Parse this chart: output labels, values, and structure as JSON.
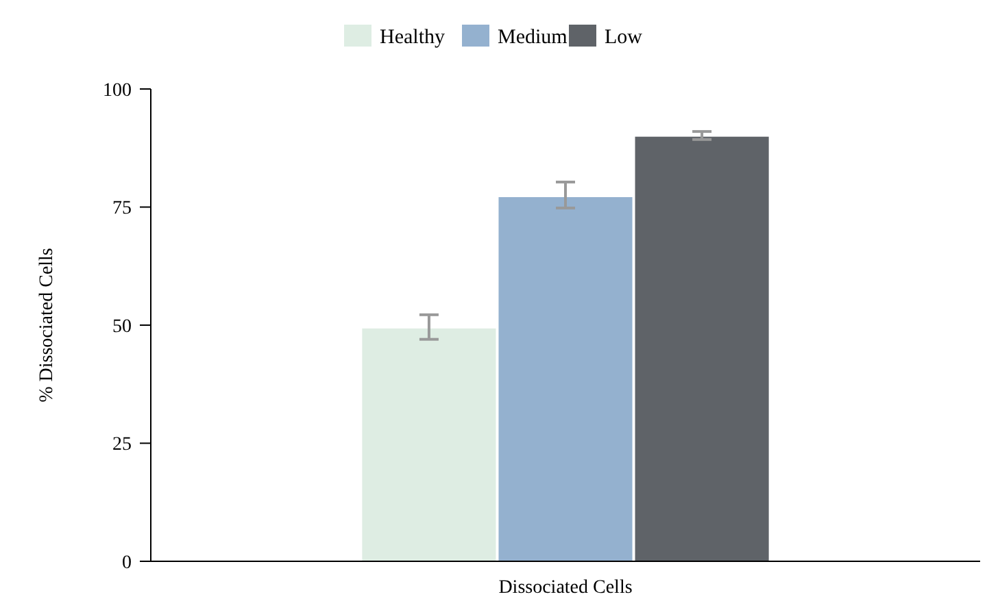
{
  "chart_data": {
    "type": "bar",
    "ylabel": "% Dissociated Cells",
    "categories": [
      "Dissociated Cells"
    ],
    "series": [
      {
        "name": "Healthy",
        "color": "#deede3",
        "values": [
          49.3
        ],
        "errors": [
          [
            47,
            52.2
          ]
        ]
      },
      {
        "name": "Medium",
        "color": "#94b1cf",
        "values": [
          77.1
        ],
        "errors": [
          [
            74.8,
            80.3
          ]
        ]
      },
      {
        "name": "Low",
        "color": "#5f6368",
        "values": [
          89.9
        ],
        "errors": [
          [
            89.3,
            91
          ]
        ]
      }
    ],
    "ylim": [
      0,
      100
    ],
    "yticks": [
      0,
      25,
      50,
      75,
      100
    ],
    "grid": false,
    "legend": "top"
  }
}
